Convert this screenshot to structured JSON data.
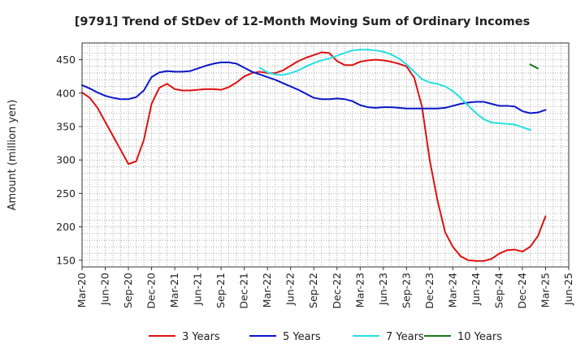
{
  "chart_data": {
    "type": "line",
    "title": "[9791]  Trend of StDev of 12-Month Moving Sum of Ordinary Incomes",
    "ylabel": "Amount (million yen)",
    "xlabel": "",
    "ylim": [
      140,
      475
    ],
    "yticks": [
      150,
      200,
      250,
      300,
      350,
      400,
      450
    ],
    "x_start": "2020-03",
    "x_end": "2025-06",
    "xticks": [
      "Mar-20",
      "Jun-20",
      "Sep-20",
      "Dec-20",
      "Mar-21",
      "Jun-21",
      "Sep-21",
      "Dec-21",
      "Mar-22",
      "Jun-22",
      "Sep-22",
      "Dec-22",
      "Mar-23",
      "Jun-23",
      "Sep-23",
      "Dec-23",
      "Mar-24",
      "Jun-24",
      "Sep-24",
      "Dec-24",
      "Mar-25",
      "Jun-25"
    ],
    "grid": true,
    "legend_position": "bottom",
    "series": [
      {
        "name": "3 Years",
        "color": "#dd1111",
        "start": "2020-03",
        "values": [
          401,
          393,
          378,
          357,
          336,
          315,
          294,
          298,
          330,
          384,
          408,
          414,
          406,
          404,
          404,
          405,
          406,
          406,
          405,
          409,
          416,
          425,
          430,
          432,
          430,
          430,
          434,
          441,
          448,
          453,
          457,
          461,
          460,
          448,
          442,
          442,
          447,
          449,
          450,
          449,
          447,
          444,
          440,
          423,
          380,
          300,
          240,
          192,
          170,
          156,
          150,
          149,
          149,
          152,
          160,
          165,
          166,
          163,
          170,
          186,
          216
        ]
      },
      {
        "name": "5 Years",
        "color": "#0a16c8",
        "start": "2020-03",
        "values": [
          412,
          407,
          401,
          396,
          393,
          391,
          391,
          394,
          404,
          424,
          431,
          433,
          432,
          432,
          433,
          437,
          441,
          444,
          446,
          446,
          444,
          438,
          432,
          428,
          424,
          420,
          415,
          410,
          405,
          399,
          393,
          391,
          391,
          392,
          391,
          388,
          382,
          379,
          378,
          379,
          379,
          378,
          377,
          377,
          377,
          377,
          377,
          378,
          381,
          384,
          386,
          387,
          387,
          384,
          381,
          381,
          380,
          373,
          370,
          371,
          375
        ]
      },
      {
        "name": "7 Years",
        "color": "#22e0e0",
        "start": "2022-02",
        "values": [
          438,
          431,
          428,
          427,
          430,
          434,
          440,
          445,
          449,
          452,
          456,
          460,
          464,
          465,
          465,
          464,
          462,
          458,
          452,
          443,
          432,
          421,
          416,
          414,
          410,
          403,
          393,
          381,
          370,
          361,
          356,
          355,
          354,
          353,
          349,
          345
        ]
      },
      {
        "name": "10 Years",
        "color": "#1a7a1a",
        "start": "2025-01",
        "values": [
          443,
          437
        ]
      }
    ]
  }
}
